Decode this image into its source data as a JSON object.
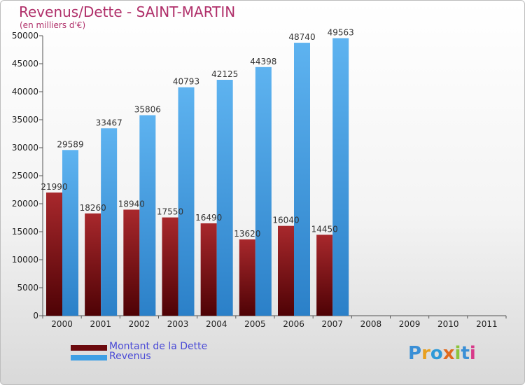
{
  "chart_data": {
    "type": "bar",
    "title": "Revenus/Dette - SAINT-MARTIN",
    "subtitle": "(en milliers d'€)",
    "xlabel": "",
    "ylabel": "",
    "ylim": [
      0,
      50000
    ],
    "yticks": [
      0,
      5000,
      10000,
      15000,
      20000,
      25000,
      30000,
      35000,
      40000,
      45000,
      50000
    ],
    "grid": false,
    "categories": [
      "2000",
      "2001",
      "2002",
      "2003",
      "2004",
      "2005",
      "2006",
      "2007",
      "2008",
      "2009",
      "2010",
      "2011"
    ],
    "series": [
      {
        "name": "Montant de la Dette",
        "color": "#7a0c10",
        "values": [
          21990,
          18260,
          18940,
          17550,
          16490,
          13620,
          16040,
          14450,
          null,
          null,
          null,
          null
        ],
        "labels": [
          "21990",
          "18260",
          "18940",
          "17550",
          "16490",
          "13620",
          "16040",
          "14450",
          null,
          null,
          null,
          null
        ]
      },
      {
        "name": "Revenus",
        "color": "#3f9fe4",
        "values": [
          29589,
          33467,
          35806,
          40793,
          42125,
          44398,
          48740,
          49563,
          null,
          null,
          null,
          null
        ],
        "labels": [
          "29589",
          "33467",
          "35806",
          "40793",
          "42125",
          "44398",
          "48740",
          "49563",
          null,
          null,
          null,
          null
        ]
      }
    ]
  },
  "legend": [
    {
      "label": "Montant de la Dette",
      "color": "#6b0a0e"
    },
    {
      "label": "Revenus",
      "color": "#3f9fe4"
    }
  ],
  "logo": {
    "letters": [
      "P",
      "r",
      "o",
      "x",
      "i",
      "t",
      "i"
    ],
    "colors": [
      "#3a8fd6",
      "#e8a020",
      "#2e9ad8",
      "#e06a1e",
      "#8cc43c",
      "#3a8fd6",
      "#d83a8a"
    ]
  }
}
